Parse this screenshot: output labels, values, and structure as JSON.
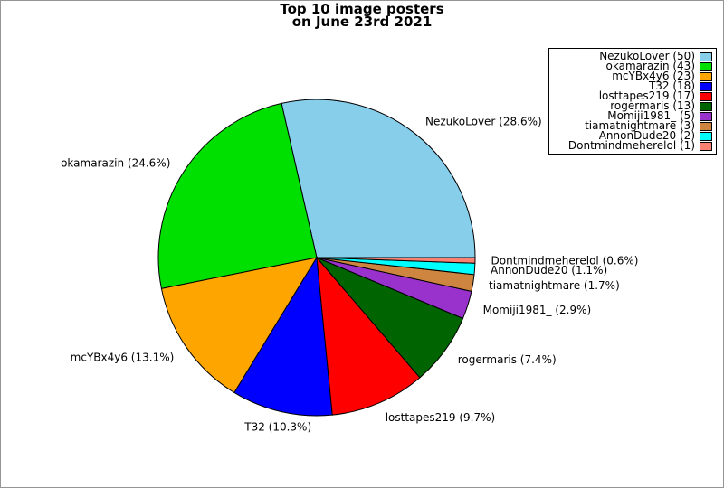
{
  "title": {
    "line1": "Top 10 image posters",
    "line2": "on June 23rd 2021"
  },
  "chart_data": {
    "type": "pie",
    "title": "Top 10 image posters on June 23rd 2021",
    "start_angle_deg": 0,
    "direction": "counterclockwise",
    "legend_position": "upper-right",
    "slice_label_format": "{name} ({percent}%)",
    "legend_label_format": "{name} ({count})",
    "slices": [
      {
        "name": "NezukoLover",
        "count": 50,
        "percent": 28.6,
        "color": "#87CEEB"
      },
      {
        "name": "okamarazin",
        "count": 43,
        "percent": 24.6,
        "color": "#00E000"
      },
      {
        "name": "mcYBx4y6",
        "count": 23,
        "percent": 13.1,
        "color": "#FFA500"
      },
      {
        "name": "T32",
        "count": 18,
        "percent": 10.3,
        "color": "#0000FF"
      },
      {
        "name": "losttapes219",
        "count": 17,
        "percent": 9.7,
        "color": "#FF0000"
      },
      {
        "name": "rogermaris",
        "count": 13,
        "percent": 7.4,
        "color": "#006400"
      },
      {
        "name": "Momiji1981_",
        "count": 5,
        "percent": 2.9,
        "color": "#9932CC"
      },
      {
        "name": "tiamatnightmare",
        "count": 3,
        "percent": 1.7,
        "color": "#CD853F"
      },
      {
        "name": "AnnonDude20",
        "count": 2,
        "percent": 1.1,
        "color": "#00FFFF"
      },
      {
        "name": "Dontmindmeherelol",
        "count": 1,
        "percent": 0.6,
        "color": "#FA8072"
      }
    ]
  }
}
